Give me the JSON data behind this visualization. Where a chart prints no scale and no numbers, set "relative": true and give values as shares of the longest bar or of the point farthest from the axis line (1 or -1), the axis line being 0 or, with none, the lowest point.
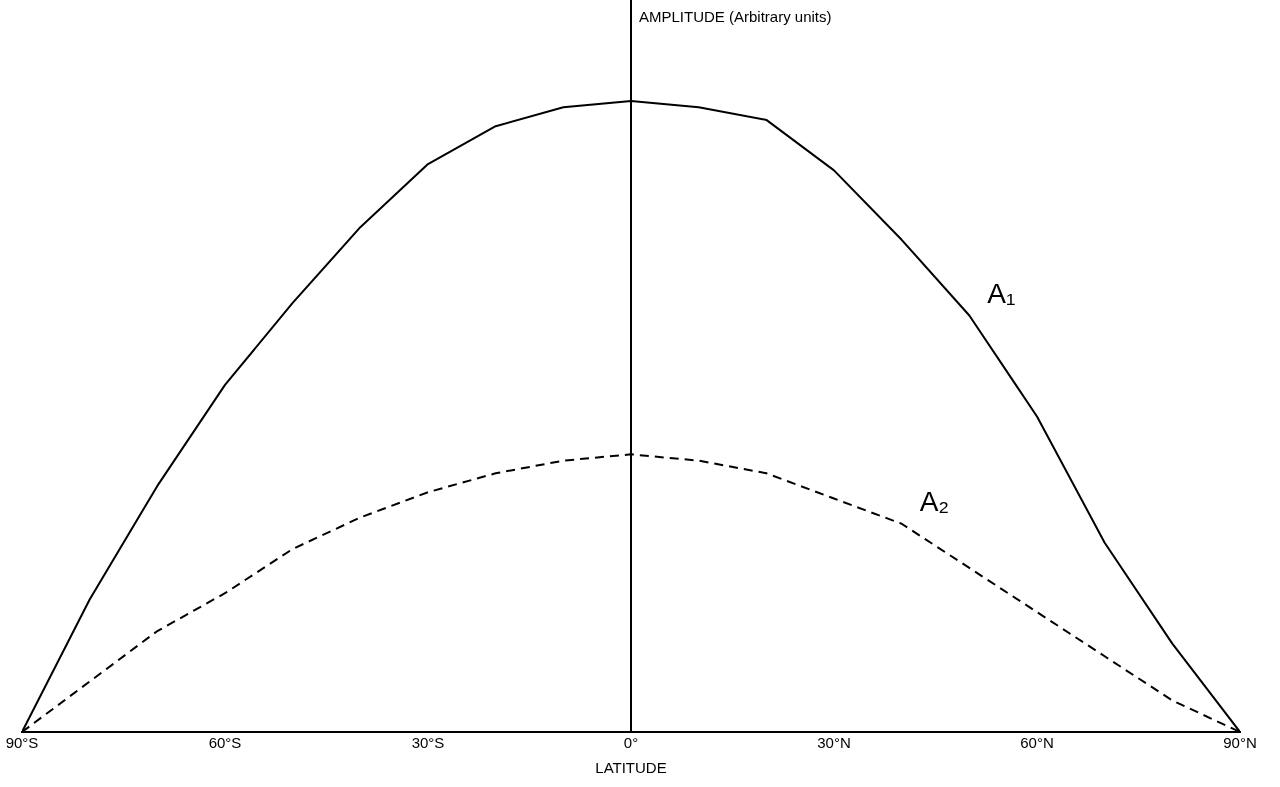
{
  "chart_data": {
    "type": "line",
    "relative": true,
    "annotations": [
      "AMPLITUDE (Arbitrary units)"
    ],
    "ref_lines": [
      {
        "axis": "x",
        "value": 0
      }
    ],
    "xlabel": "LATITUDE",
    "x": [
      -90,
      -80,
      -70,
      -60,
      -50,
      -40,
      -30,
      -20,
      -10,
      0,
      10,
      20,
      30,
      40,
      50,
      60,
      70,
      80,
      90
    ],
    "xlim": [
      -90,
      90
    ],
    "xticks": [
      {
        "value": -90,
        "label": "90°S"
      },
      {
        "value": -60,
        "label": "60°S"
      },
      {
        "value": -30,
        "label": "30°S"
      },
      {
        "value": 0,
        "label": "0°"
      },
      {
        "value": 30,
        "label": "30°N"
      },
      {
        "value": 60,
        "label": "60°N"
      },
      {
        "value": 90,
        "label": "90°N"
      }
    ],
    "series": [
      {
        "name": "A₁",
        "color": "#000000",
        "line_style": "solid",
        "values": [
          0,
          0.21,
          0.39,
          0.55,
          0.68,
          0.8,
          0.9,
          0.96,
          0.99,
          1,
          0.99,
          0.97,
          0.89,
          0.78,
          0.66,
          0.5,
          0.3,
          0.14,
          0
        ]
      },
      {
        "name": "A₂",
        "color": "#000000",
        "line_style": "dashed",
        "values": [
          0,
          0.08,
          0.16,
          0.22,
          0.29,
          0.34,
          0.38,
          0.41,
          0.43,
          0.44,
          0.43,
          0.41,
          0.37,
          0.33,
          0.26,
          0.19,
          0.12,
          0.05,
          0
        ]
      }
    ],
    "grid": false,
    "legend": false,
    "marker": "none"
  }
}
